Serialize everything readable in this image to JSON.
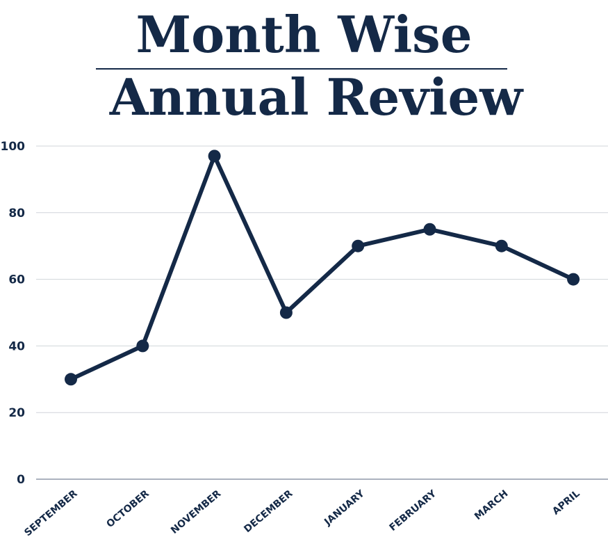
{
  "chart_data": {
    "type": "line",
    "title_line1": "Month Wise",
    "title_line2": "Annual Review",
    "categories": [
      "SEPTEMBER",
      "OCTOBER",
      "NOVEMBER",
      "DECEMBER",
      "JANUARY",
      "FEBRUARY",
      "MARCH",
      "APRIL"
    ],
    "series": [
      {
        "values": [
          30,
          40,
          97,
          50,
          70,
          75,
          70,
          60
        ]
      }
    ],
    "xlabel": "",
    "ylabel": "",
    "ylim": [
      0,
      100
    ],
    "yticks": [
      "0",
      "20",
      "40",
      "60",
      "80",
      "100"
    ],
    "grid": true,
    "legend": "none",
    "colors": {
      "line": "#142947",
      "grid": "#d0d4da",
      "text": "#142947"
    }
  }
}
